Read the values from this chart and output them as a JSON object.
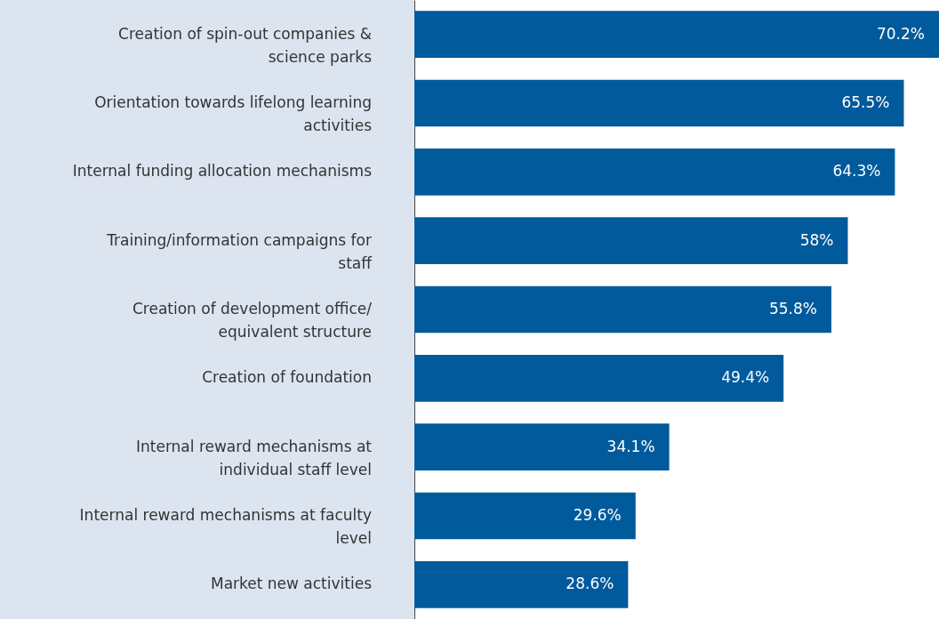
{
  "chart_data": {
    "type": "bar",
    "orientation": "horizontal",
    "categories": [
      "Creation of spin-out companies & science parks",
      "Orientation towards lifelong learning activities",
      "Internal funding allocation mechanisms",
      "Training/information campaigns for staff",
      "Creation of development office/ equivalent structure",
      "Creation of foundation",
      "Internal reward mechanisms at individual staff level",
      "Internal reward mechanisms at faculty level",
      "Market new activities"
    ],
    "values": [
      70.2,
      65.5,
      64.3,
      58,
      55.8,
      49.4,
      34.1,
      29.6,
      28.6
    ],
    "value_labels": [
      "70.2%",
      "65.5%",
      "64.3%",
      "58%",
      "55.8%",
      "49.4%",
      "34.1%",
      "29.6%",
      "28.6%"
    ],
    "color": "#005a9c"
  }
}
